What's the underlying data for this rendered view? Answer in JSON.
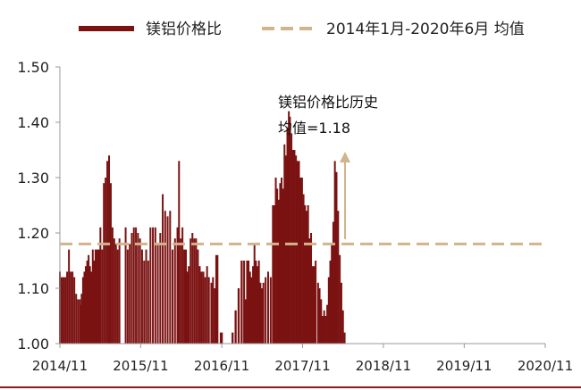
{
  "colors": {
    "bar": "#7b1212",
    "mean_line": "#d1b48c",
    "axis": "#999999",
    "text": "#222222",
    "bottom_rule": "#8b1a1a"
  },
  "legend": {
    "series_label": "镁铝价格比",
    "mean_label": "2014年1月-2020年6月 均值"
  },
  "annotation": {
    "line1": "镁铝价格比历史",
    "line2": "均值=1.18"
  },
  "chart_data": {
    "type": "bar",
    "ylim": [
      1.0,
      1.5
    ],
    "ytick_labels": [
      "1.00",
      "1.10",
      "1.20",
      "1.30",
      "1.40",
      "1.50"
    ],
    "yticks": [
      1.0,
      1.1,
      1.2,
      1.3,
      1.4,
      1.5
    ],
    "xtick_labels": [
      "2014/11",
      "2015/11",
      "2016/11",
      "2017/11",
      "2018/11",
      "2019/11",
      "2020/11"
    ],
    "xtick_dates": [
      "2014-11",
      "2015-11",
      "2016-11",
      "2017-11",
      "2018-11",
      "2019-11",
      "2020-11"
    ],
    "mean_value": 1.18,
    "series": [
      {
        "name": "镁铝价格比",
        "segments": [
          {
            "start": "2014-11-01",
            "end": "2014-12-20",
            "values": [
              1.13,
              1.12,
              1.12,
              1.12,
              1.13,
              1.17,
              1.13
            ]
          },
          {
            "start": "2014-12-28",
            "end": "2015-01-30",
            "values": [
              1.13,
              1.12,
              1.09,
              1.08,
              1.08
            ]
          },
          {
            "start": "2015-02-01",
            "end": "2015-04-30",
            "values": [
              1.07,
              1.09,
              1.12,
              1.13,
              1.14,
              1.15,
              1.16,
              1.14,
              1.13,
              1.17,
              1.15,
              1.17,
              1.17,
              1.17,
              1.17
            ]
          },
          {
            "start": "2015-05-03",
            "end": "2015-07-28",
            "values": [
              1.21,
              1.17,
              1.29,
              1.3,
              1.33,
              1.34,
              1.29,
              1.21,
              1.19,
              1.18,
              1.17,
              1.19
            ]
          },
          {
            "start": "2015-08-25",
            "end": "2015-12-05",
            "values": [
              1.21,
              1.17,
              1.18,
              1.2,
              1.21,
              1.21,
              1.2,
              1.19,
              1.17,
              1.15,
              1.17,
              1.15
            ]
          },
          {
            "start": "2015-12-15",
            "end": "2016-04-15",
            "values": [
              1.21,
              1.21,
              1.21,
              1.18,
              1.2,
              1.27,
              1.24,
              1.23,
              1.24,
              1.17,
              1.19,
              1.21
            ]
          },
          {
            "start": "2016-04-22",
            "end": "2016-05-31",
            "values": [
              1.33,
              1.19,
              1.21,
              1.17,
              1.17,
              1.13
            ]
          },
          {
            "start": "2016-06-05",
            "end": "2016-09-04",
            "values": [
              1.14,
              1.19,
              1.2,
              1.19,
              1.19,
              1.17,
              1.14,
              1.13,
              1.13,
              1.12,
              1.14,
              1.12
            ]
          },
          {
            "start": "2016-09-15",
            "end": "2016-09-30",
            "values": [
              1.11,
              1.12,
              1.1
            ]
          },
          {
            "start": "2016-10-10",
            "end": "2016-10-30",
            "values": [
              1.16,
              1.02
            ]
          },
          {
            "start": "2016-12-20",
            "end": "2017-01-30",
            "values": [
              1.02,
              1.06,
              1.1,
              1.15
            ]
          },
          {
            "start": "2017-02-10",
            "end": "2017-05-08",
            "values": [
              1.15,
              1.08,
              1.15,
              1.15,
              1.13,
              1.12,
              1.14,
              1.18,
              1.15,
              1.14,
              1.15,
              1.11,
              1.1,
              1.11
            ]
          },
          {
            "start": "2017-05-18",
            "end": "2017-06-10",
            "values": [
              1.12,
              1.13,
              1.12
            ]
          },
          {
            "start": "2017-06-20",
            "end": "2017-08-31",
            "values": [
              1.25,
              1.25,
              1.3,
              1.28,
              1.26,
              1.29,
              1.3,
              1.28,
              1.36,
              1.34,
              1.39,
              1.42
            ]
          },
          {
            "start": "2017-09-05",
            "end": "2017-12-30",
            "values": [
              1.41,
              1.38,
              1.35,
              1.35,
              1.34,
              1.33,
              1.33,
              1.3,
              1.3,
              1.27,
              1.25,
              1.24,
              1.25,
              1.19,
              1.2,
              1.14,
              1.14,
              1.15
            ]
          },
          {
            "start": "2018-01-10",
            "end": "2018-03-20",
            "values": [
              1.11,
              1.1,
              1.08,
              1.05,
              1.06,
              1.05,
              1.07,
              1.12,
              1.15,
              1.18,
              1.22
            ]
          },
          {
            "start": "2018-03-27",
            "end": "2018-05-10",
            "values": [
              1.33,
              1.31,
              1.24,
              1.16,
              1.11,
              1.06,
              1.02
            ]
          }
        ]
      }
    ]
  }
}
